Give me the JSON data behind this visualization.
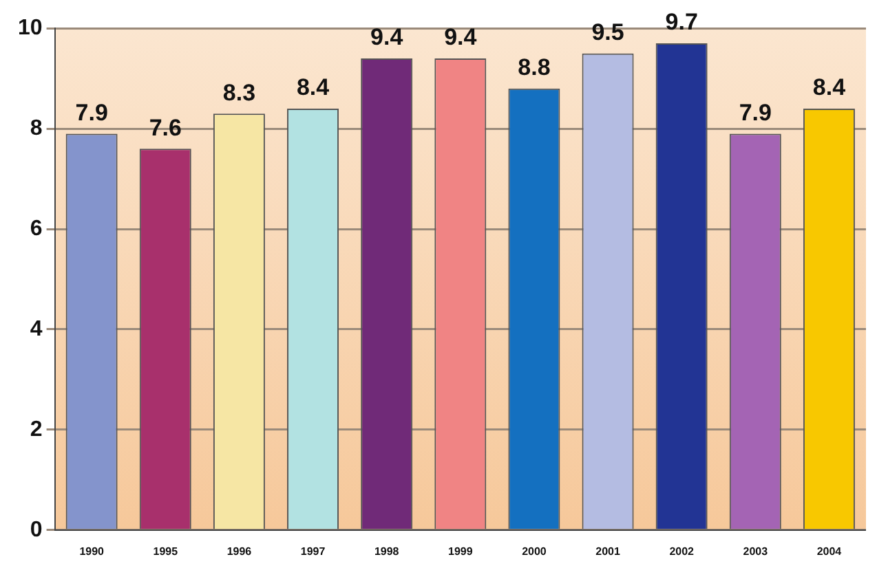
{
  "chart_data": {
    "type": "bar",
    "categories": [
      "1990",
      "1995",
      "1996",
      "1997",
      "1998",
      "1999",
      "2000",
      "2001",
      "2002",
      "2003",
      "2004"
    ],
    "values": [
      7.9,
      7.6,
      8.3,
      8.4,
      9.4,
      9.4,
      8.8,
      9.5,
      9.7,
      7.9,
      8.4
    ],
    "colors": [
      "#8494cc",
      "#a8306c",
      "#f6e6a4",
      "#b2e2e2",
      "#702a78",
      "#f08484",
      "#1470c0",
      "#b4bce2",
      "#223494",
      "#a464b4",
      "#f8c800"
    ],
    "ylim": [
      0,
      10
    ],
    "yticks": [
      0,
      2,
      4,
      6,
      8,
      10
    ],
    "grid": "y",
    "data_labels": true
  }
}
